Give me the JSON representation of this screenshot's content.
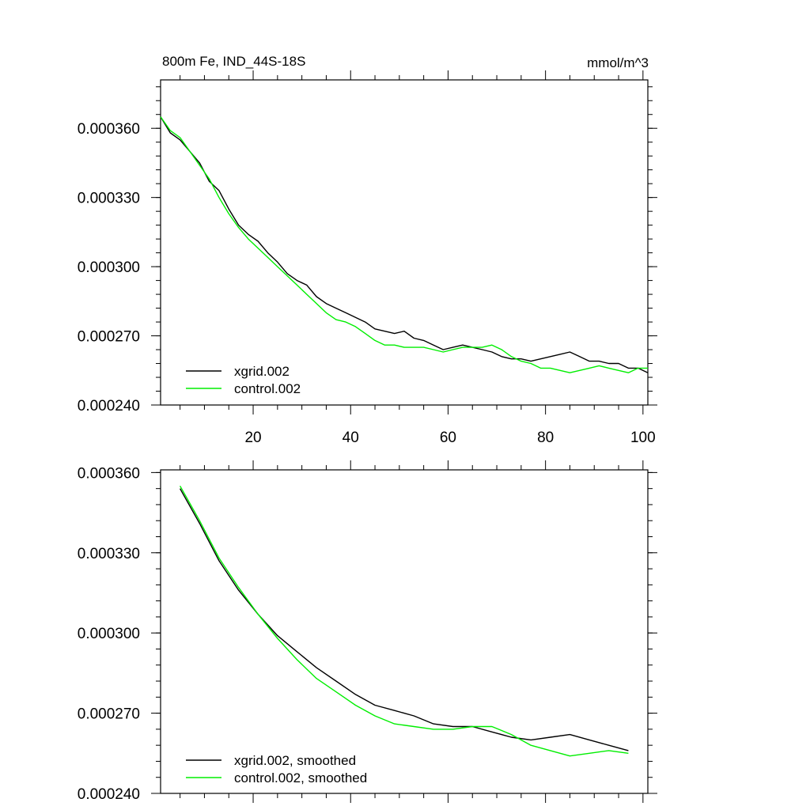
{
  "colors": {
    "xgrid": "#000000",
    "control": "#00ee00",
    "axis": "#000000"
  },
  "chart_data": [
    {
      "type": "line",
      "title": "800m Fe, IND_44S-18S",
      "units": "mmol/m^3",
      "xlim": [
        1,
        101
      ],
      "ylim": [
        0.00024,
        0.000381
      ],
      "yticks": [
        0.00024,
        0.00027,
        0.0003,
        0.00033,
        0.00036
      ],
      "ytick_labels": [
        "0.000240",
        "0.000270",
        "0.000300",
        "0.000330",
        "0.000360"
      ],
      "xticks": [
        20,
        40,
        60,
        80,
        100
      ],
      "xtick_labels": [
        "20",
        "40",
        "60",
        "80",
        "100"
      ],
      "legend_position": "bottom-left",
      "series": [
        {
          "name": "xgrid.002",
          "color": "#000000",
          "x": [
            1,
            3,
            5,
            7,
            9,
            11,
            13,
            15,
            17,
            19,
            21,
            23,
            25,
            27,
            29,
            31,
            33,
            35,
            37,
            39,
            41,
            43,
            45,
            47,
            49,
            51,
            53,
            55,
            57,
            59,
            61,
            63,
            65,
            67,
            69,
            71,
            73,
            75,
            77,
            79,
            81,
            83,
            85,
            87,
            89,
            91,
            93,
            95,
            97,
            99,
            101
          ],
          "values": [
            0.000365,
            0.000358,
            0.000355,
            0.00035,
            0.000345,
            0.000337,
            0.000333,
            0.000325,
            0.000318,
            0.000314,
            0.000311,
            0.000306,
            0.000302,
            0.000297,
            0.000294,
            0.000292,
            0.000287,
            0.000284,
            0.000282,
            0.00028,
            0.000278,
            0.000276,
            0.000273,
            0.000272,
            0.000271,
            0.000272,
            0.000269,
            0.000268,
            0.000266,
            0.000264,
            0.000265,
            0.000266,
            0.000265,
            0.000264,
            0.000263,
            0.000261,
            0.00026,
            0.00026,
            0.000259,
            0.00026,
            0.000261,
            0.000262,
            0.000263,
            0.000261,
            0.000259,
            0.000259,
            0.000258,
            0.000258,
            0.000256,
            0.000256,
            0.000254
          ]
        },
        {
          "name": "control.002",
          "color": "#00ee00",
          "x": [
            1,
            3,
            5,
            7,
            9,
            11,
            13,
            15,
            17,
            19,
            21,
            23,
            25,
            27,
            29,
            31,
            33,
            35,
            37,
            39,
            41,
            43,
            45,
            47,
            49,
            51,
            53,
            55,
            57,
            59,
            61,
            63,
            65,
            67,
            69,
            71,
            73,
            75,
            77,
            79,
            81,
            83,
            85,
            87,
            89,
            91,
            93,
            95,
            97,
            99,
            101
          ],
          "values": [
            0.000365,
            0.000359,
            0.000356,
            0.00035,
            0.000344,
            0.000338,
            0.00033,
            0.000323,
            0.000317,
            0.000312,
            0.000308,
            0.000304,
            0.0003,
            0.000296,
            0.000292,
            0.000288,
            0.000284,
            0.00028,
            0.000277,
            0.000276,
            0.000274,
            0.000271,
            0.000268,
            0.000266,
            0.000266,
            0.000265,
            0.000265,
            0.000265,
            0.000264,
            0.000263,
            0.000264,
            0.000265,
            0.000265,
            0.000265,
            0.000266,
            0.000264,
            0.000261,
            0.000259,
            0.000258,
            0.000256,
            0.000256,
            0.000255,
            0.000254,
            0.000255,
            0.000256,
            0.000257,
            0.000256,
            0.000255,
            0.000254,
            0.000256,
            0.000256
          ]
        }
      ]
    },
    {
      "type": "line",
      "title": "",
      "xlim": [
        1,
        101
      ],
      "ylim": [
        0.00024,
        0.000361
      ],
      "yticks": [
        0.00024,
        0.00027,
        0.0003,
        0.00033,
        0.00036
      ],
      "ytick_labels": [
        "0.000240",
        "0.000270",
        "0.000300",
        "0.000330",
        "0.000360"
      ],
      "xticks": [
        20,
        40,
        60,
        80,
        100
      ],
      "legend_position": "bottom-left",
      "series": [
        {
          "name": "xgrid.002, smoothed",
          "color": "#000000",
          "x": [
            5,
            9,
            13,
            17,
            21,
            25,
            29,
            33,
            37,
            41,
            45,
            49,
            53,
            57,
            61,
            65,
            69,
            73,
            77,
            81,
            85,
            89,
            93,
            97
          ],
          "values": [
            0.000354,
            0.000341,
            0.000327,
            0.000316,
            0.000307,
            0.000299,
            0.000293,
            0.000287,
            0.000282,
            0.000277,
            0.000273,
            0.000271,
            0.000269,
            0.000266,
            0.000265,
            0.000265,
            0.000263,
            0.000261,
            0.00026,
            0.000261,
            0.000262,
            0.00026,
            0.000258,
            0.000256
          ]
        },
        {
          "name": "control.002, smoothed",
          "color": "#00ee00",
          "x": [
            5,
            9,
            13,
            17,
            21,
            25,
            29,
            33,
            37,
            41,
            45,
            49,
            53,
            57,
            61,
            65,
            69,
            73,
            77,
            81,
            85,
            89,
            93,
            97
          ],
          "values": [
            0.000355,
            0.000342,
            0.000328,
            0.000317,
            0.000307,
            0.000298,
            0.00029,
            0.000283,
            0.000278,
            0.000273,
            0.000269,
            0.000266,
            0.000265,
            0.000264,
            0.000264,
            0.000265,
            0.000265,
            0.000262,
            0.000258,
            0.000256,
            0.000254,
            0.000255,
            0.000256,
            0.000255
          ]
        }
      ]
    }
  ]
}
